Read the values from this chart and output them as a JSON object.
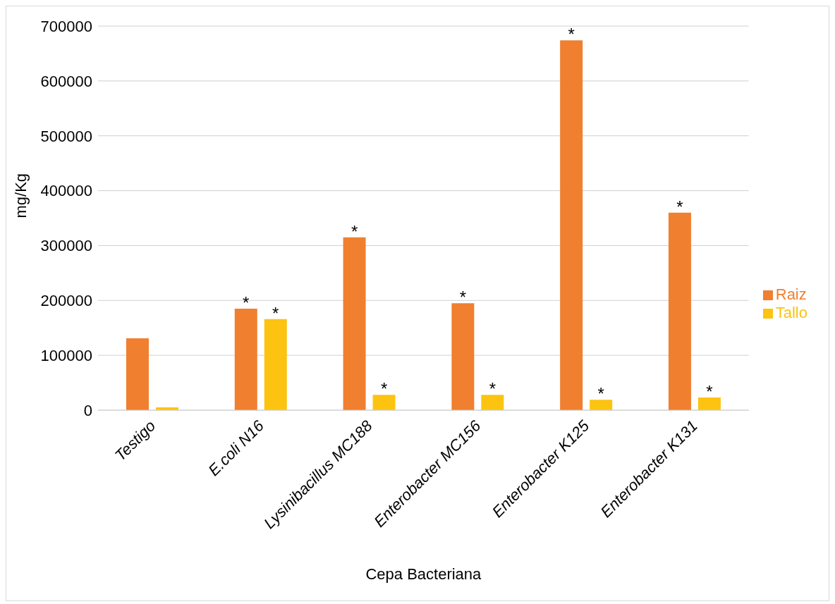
{
  "chart_data": {
    "type": "bar",
    "xlabel": "Cepa Bacteriana",
    "ylabel": "mg/Kg",
    "categories": [
      "Testigo",
      "E.coli N16",
      "Lysinibacillus MC188",
      "Enterobacter MC156",
      "Enterobacter K125",
      "Enterobacter K131"
    ],
    "series": [
      {
        "name": "Raiz",
        "color": "#f07f2f",
        "values": [
          131000,
          185000,
          315000,
          195000,
          674000,
          360000
        ],
        "value_labels": [
          null,
          "*",
          "*",
          "*",
          "*",
          "*"
        ]
      },
      {
        "name": "Tallo",
        "color": "#fdc311",
        "values": [
          5000,
          166000,
          28000,
          28000,
          19000,
          23000
        ],
        "value_labels": [
          null,
          "*",
          "*",
          "*",
          "*",
          "*"
        ]
      }
    ],
    "ylim": [
      0,
      700000
    ],
    "yticks": [
      0,
      100000,
      200000,
      300000,
      400000,
      500000,
      600000,
      700000
    ],
    "grid": "y",
    "legend": "right"
  }
}
